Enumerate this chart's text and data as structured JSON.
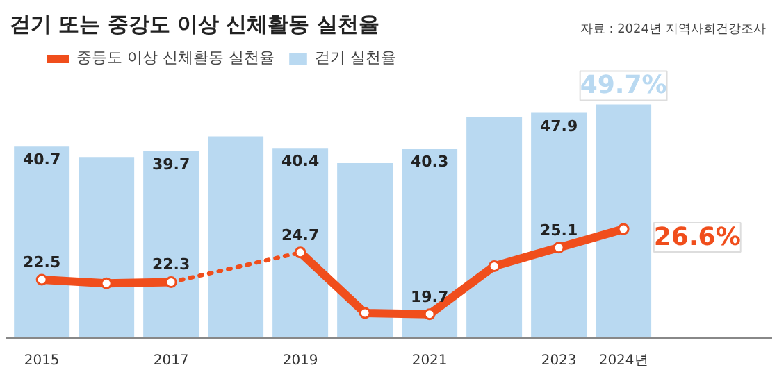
{
  "chart_data": {
    "type": "bar",
    "title": "걷기 또는 중강도 이상 신체활동 실천율",
    "annotations": [
      "자료 : 2024년 지역사회건강조사"
    ],
    "categories": [
      "2015",
      null,
      "2017",
      null,
      "2019",
      null,
      "2021",
      null,
      "2023",
      "2024년"
    ],
    "series": [
      {
        "name": "중등도 이상 신체활동 실천율",
        "type": "line",
        "axis": "y2",
        "color": "#f04e1c",
        "marker": "circle",
        "values": [
          22.5,
          22.2,
          22.3,
          null,
          24.7,
          19.8,
          19.7,
          23.6,
          25.1,
          26.6
        ],
        "value_labels": [
          "22.5",
          null,
          "22.3",
          null,
          "24.7",
          null,
          "19.7",
          null,
          "25.1",
          "26.6%"
        ]
      },
      {
        "name": "걷기 실천율",
        "color": "#b9d9f1",
        "values": [
          40.7,
          38.5,
          39.7,
          42.9,
          40.4,
          37.2,
          40.3,
          47.1,
          47.9,
          49.7
        ],
        "value_labels": [
          "40.7",
          null,
          "39.7",
          null,
          "40.4",
          null,
          "40.3",
          null,
          "47.9",
          "49.7%"
        ]
      }
    ],
    "tick_labels": "x",
    "legend": "top left",
    "grid": false
  }
}
